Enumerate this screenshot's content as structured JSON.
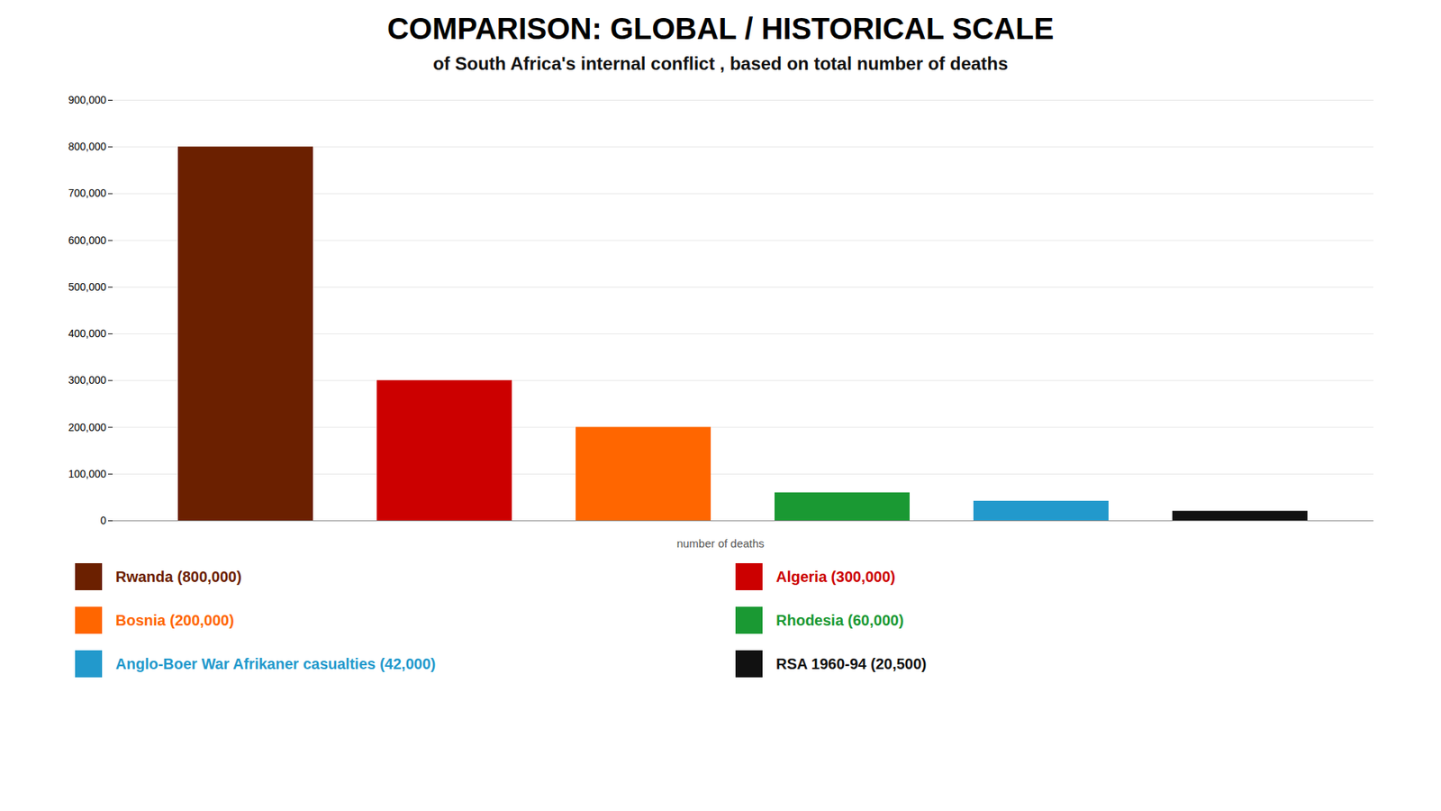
{
  "chart_data": {
    "type": "bar",
    "title": "COMPARISON: GLOBAL / HISTORICAL SCALE",
    "subtitle": "of South Africa's internal conflict , based on total number of deaths",
    "xlabel": "number of deaths",
    "categories": [
      "Rwanda (800,000)",
      "Algeria (300,000)",
      "Bosnia (200,000)",
      "Rhodesia (60,000)",
      "Anglo-Boer War Afrikaner casualties (42,000)",
      "RSA 1960-94 (20,500)"
    ],
    "values": [
      800000,
      300000,
      200000,
      60000,
      42000,
      20500
    ],
    "colors": [
      "#6B2000",
      "#CC0000",
      "#FF6600",
      "#1A9933",
      "#2299CC",
      "#111111"
    ],
    "ylim": [
      0,
      900000
    ],
    "yticks": [
      0,
      {
        "value": 100000,
        "label": "100,000"
      },
      {
        "value": 200000,
        "label": "200,000"
      },
      {
        "value": 300000,
        "label": "300,000"
      },
      {
        "value": 400000,
        "label": "400,000"
      },
      {
        "value": 500000,
        "label": "500,000"
      },
      {
        "value": 600000,
        "label": "600,000"
      },
      {
        "value": 700000,
        "label": "700,000"
      },
      {
        "value": 800000,
        "label": "800,000"
      },
      {
        "value": 900000,
        "label": "900,000"
      }
    ],
    "grid": true,
    "legend": "bottom",
    "tick_labels": "y"
  }
}
